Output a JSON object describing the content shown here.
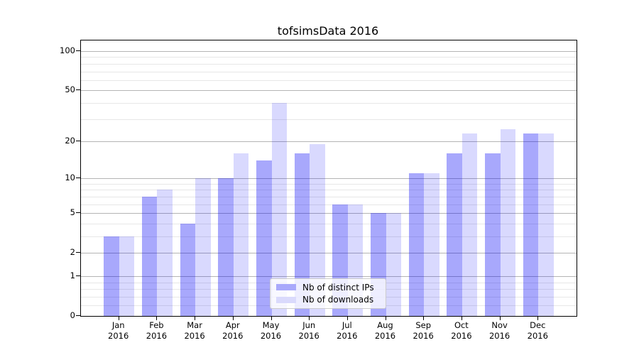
{
  "title": "tofsimsData 2016",
  "chart_data": {
    "type": "bar",
    "title": "tofsimsData 2016",
    "categories": [
      "Jan",
      "Feb",
      "Mar",
      "Apr",
      "May",
      "Jun",
      "Jul",
      "Aug",
      "Sep",
      "Oct",
      "Nov",
      "Dec"
    ],
    "category_year": "2016",
    "series": [
      {
        "name": "Nb of distinct IPs",
        "color": "#a9a9fb",
        "fill_rgba": "rgba(0,0,245,0.34)",
        "values": [
          3,
          7,
          4,
          10,
          14,
          16,
          6,
          5,
          11,
          16,
          16,
          23
        ]
      },
      {
        "name": "Nb of downloads",
        "color": "#dadafc",
        "fill_rgba": "rgba(0,0,245,0.15)",
        "values": [
          3,
          8,
          10,
          16,
          40,
          19,
          6,
          5,
          11,
          23,
          25,
          23
        ]
      }
    ],
    "xlabel": "",
    "ylabel": "",
    "yscale": "log10(value+1)",
    "ylim": [
      0,
      122
    ],
    "ytick_values": [
      100,
      50,
      20,
      10,
      5,
      2,
      1,
      0
    ],
    "ytick_labels": [
      "100",
      "50",
      "20",
      "10",
      "5",
      "2",
      "1",
      "0"
    ],
    "minor_gridline_values": [
      0.2,
      0.4,
      0.6,
      0.8,
      3,
      4,
      6,
      7,
      8,
      9,
      30,
      40,
      60,
      70,
      80,
      90
    ],
    "major_gridline_values": [
      1,
      2,
      5,
      10,
      20,
      50,
      100
    ],
    "grid": "on",
    "legend_position": "lower center (inside plot)",
    "colors": {
      "axis": "#000000",
      "major_grid": "#b4b4b4",
      "minor_grid": "#e7e7e7",
      "background": "#ffffff"
    }
  }
}
